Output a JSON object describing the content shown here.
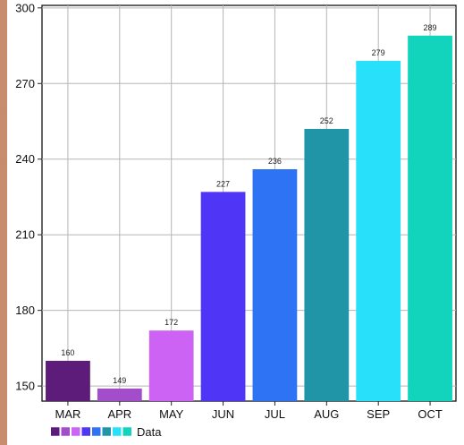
{
  "chart_data": {
    "type": "bar",
    "categories": [
      "MAR",
      "APR",
      "MAY",
      "JUN",
      "JUL",
      "AUG",
      "SEP",
      "OCT"
    ],
    "series": [
      {
        "name": "Data",
        "values": [
          160,
          149,
          172,
          227,
          236,
          252,
          279,
          289
        ]
      }
    ],
    "bar_colors": [
      "#5e1c7a",
      "#a24dc9",
      "#cc63f5",
      "#4f35f5",
      "#2f73f5",
      "#2195a8",
      "#28e0fa",
      "#12d3bb"
    ],
    "data_labels": [
      "160",
      "149",
      "172",
      "227",
      "236",
      "252",
      "279",
      "289"
    ],
    "y_ticks": [
      "150",
      "180",
      "210",
      "240",
      "270",
      "300"
    ],
    "ylim": [
      144,
      301
    ],
    "grid": true,
    "legend": {
      "placement": "bottom-left",
      "label": "Data"
    },
    "title": "",
    "xlabel": "",
    "ylabel": ""
  }
}
